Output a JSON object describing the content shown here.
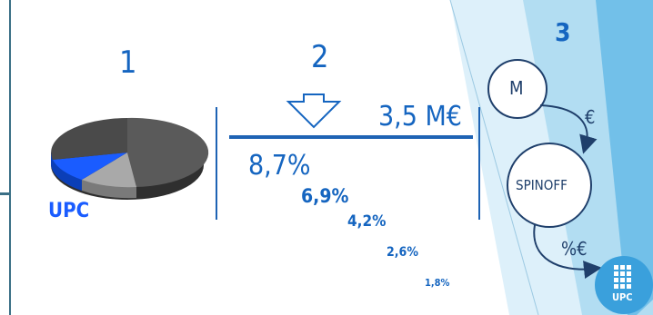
{
  "colors": {
    "accent_blue": "#1565c0",
    "line_blue": "#1e63b4",
    "teal_bar": "#3a6f86",
    "panel_light": "#cfeaf8",
    "panel_mid": "#9fd4ef",
    "panel_strong": "#5fb6e6"
  },
  "steps": {
    "step1": "1",
    "step2": "2",
    "step3": "3"
  },
  "section1": {
    "upc_label": "UPC",
    "pie_slices": [
      {
        "label": "UPC",
        "color": "#1a5cff"
      },
      {
        "label": "",
        "color": "#a8a8a8"
      },
      {
        "label": "",
        "color": "#555555"
      }
    ]
  },
  "section2": {
    "amount": "3,5 M€",
    "percentages": [
      "8,7%",
      "6,9%",
      "4,2%",
      "2,6%",
      "1,8%"
    ]
  },
  "section3": {
    "top_node": "M",
    "arrow1_label": "€",
    "middle_node": "SPINOFF",
    "arrow2_label": "%€",
    "logo_text": "UPC"
  }
}
